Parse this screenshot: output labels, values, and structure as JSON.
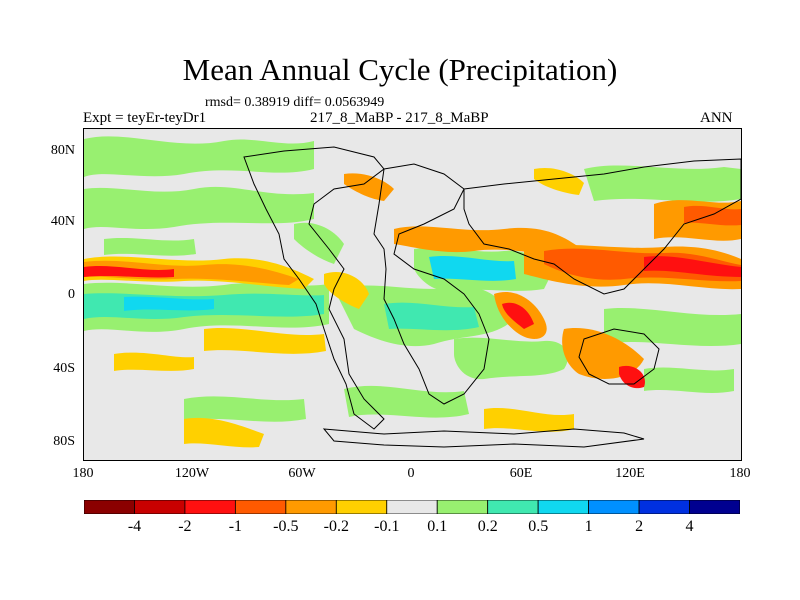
{
  "title": "Mean Annual Cycle (Precipitation)",
  "stats": "rmsd= 0.38919 diff= 0.0563949",
  "experiment": "Expt = teyEr-teyDr1",
  "case": "217_8_MaBP - 217_8_MaBP",
  "season": "ANN",
  "y_axis_labels": [
    "80N",
    "40N",
    "0",
    "40S",
    "80S"
  ],
  "x_axis_labels": [
    "180",
    "120W",
    "60W",
    "0",
    "60E",
    "120E",
    "180"
  ],
  "colorbar": {
    "labels": [
      "-4",
      "-2",
      "-1",
      "-0.5",
      "-0.2",
      "-0.1",
      "0.1",
      "0.2",
      "0.5",
      "1",
      "2",
      "4"
    ],
    "colors": [
      "#8b0000",
      "#c80000",
      "#ff1010",
      "#ff5a00",
      "#ff9a00",
      "#ffd000",
      "#e8e8e8",
      "#98f070",
      "#40e8b0",
      "#10d8f0",
      "#0090ff",
      "#0030e0",
      "#000090"
    ]
  },
  "palette": {
    "neutral": "#e8e8e8",
    "land_outline": "#000000"
  }
}
